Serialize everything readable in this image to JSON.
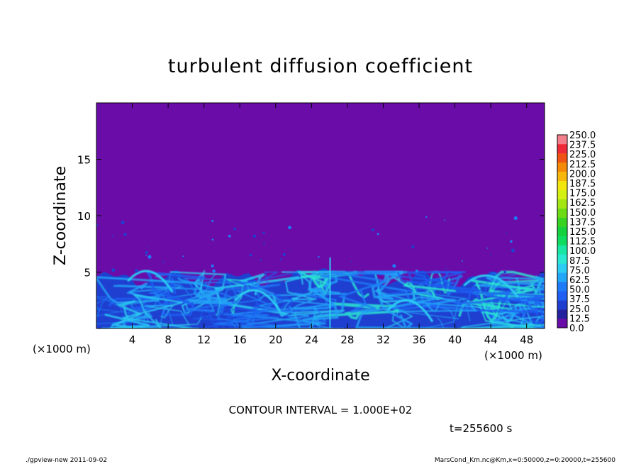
{
  "chart_data": {
    "type": "heatmap",
    "title": "turbulent diffusion coefficient",
    "xlabel": "X-coordinate",
    "ylabel": "Z-coordinate",
    "x_unit": "(×1000 m)",
    "y_unit": "(×1000 m)",
    "xlim": [
      0,
      50
    ],
    "ylim": [
      0,
      20
    ],
    "x_ticks": [
      4,
      8,
      12,
      16,
      20,
      24,
      28,
      32,
      36,
      40,
      44,
      48
    ],
    "y_ticks": [
      5,
      10,
      15
    ],
    "colorbar": {
      "levels": [
        "0.0",
        "12.5",
        "25.0",
        "37.5",
        "50.0",
        "62.5",
        "75.0",
        "87.5",
        "100.0",
        "112.5",
        "125.0",
        "137.5",
        "150.0",
        "162.5",
        "175.0",
        "187.5",
        "200.0",
        "212.5",
        "225.0",
        "237.5",
        "250.0"
      ],
      "colors": [
        "#6a0da8",
        "#24229c",
        "#1f3fd0",
        "#1e5ef2",
        "#1d7bf7",
        "#22a6f7",
        "#2bcdf2",
        "#29e8d2",
        "#17e6a4",
        "#0fdc5e",
        "#15d13e",
        "#38d321",
        "#6cdb16",
        "#a4e514",
        "#d4ef12",
        "#f3e60f",
        "#f7b60b",
        "#f58a08",
        "#f05414",
        "#ee2a38",
        "#f47f8c"
      ]
    },
    "background_value_color": "#6a0da8",
    "boundary_layer_top_km": 5,
    "contour_interval": "CONTOUR INTERVAL = 1.000E+02",
    "time": "t=255600 s"
  },
  "footer": {
    "left": "./gpview-new  2011-09-02",
    "right": "MarsCond_Km.nc@Km,x=0:50000,z=0:20000,t=255600"
  }
}
